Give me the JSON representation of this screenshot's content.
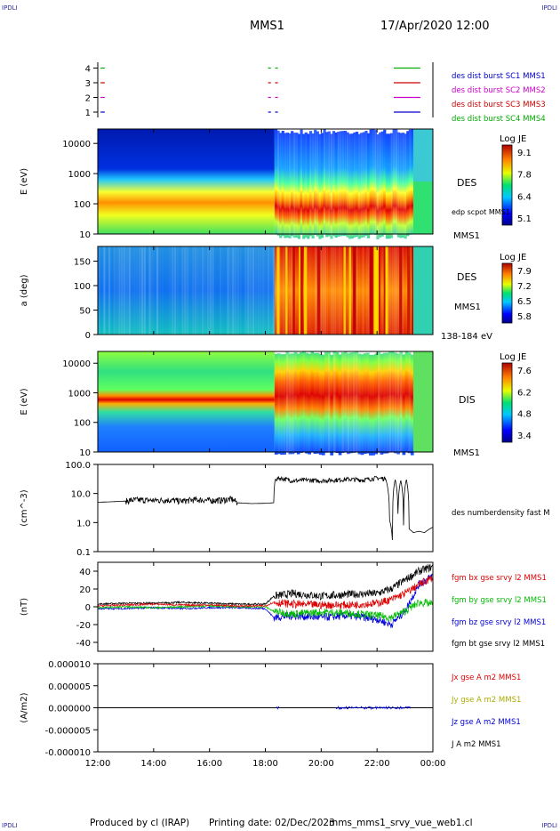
{
  "header": {
    "corner_tl": "IPDLI",
    "corner_tr": "IPDLI",
    "corner_bl": "IPDLI",
    "corner_br": "IPDLI",
    "spacecraft": "MMS1",
    "datetime": "17/Apr/2020 12:00"
  },
  "footer": {
    "produced_by": "Produced by cl (IRAP)",
    "printing_date": "Printing date: 02/Dec/2023",
    "filename": "mms_mms1_srvy_vue_web1.cl"
  },
  "time_axis": {
    "tick_labels": [
      "12:00",
      "14:00",
      "16:00",
      "18:00",
      "20:00",
      "22:00",
      "00:00"
    ],
    "start_hour": 12,
    "end_hour": 24
  },
  "chart_data": [
    {
      "type": "line",
      "panel": "burst-availability",
      "yticks": [
        "1",
        "2",
        "3",
        "4"
      ],
      "legend": [
        "des dist burst SC1 MMS1",
        "des dist burst SC2 MMS2",
        "des dist burst SC3 MMS3",
        "des dist burst SC4 MMS4"
      ],
      "colors": [
        "#0000cc",
        "#cc00cc",
        "#cc0000",
        "#00aa00"
      ],
      "series": [
        {
          "name": "des dist burst SC1 MMS1",
          "level": 1,
          "intervals": [
            [
              12.1,
              12.25
            ],
            [
              18.1,
              18.2
            ],
            [
              18.35,
              18.45
            ],
            [
              22.6,
              23.55
            ]
          ]
        },
        {
          "name": "des dist burst SC2 MMS2",
          "level": 2,
          "intervals": [
            [
              12.1,
              12.25
            ],
            [
              18.1,
              18.2
            ],
            [
              18.35,
              18.45
            ],
            [
              22.6,
              23.55
            ]
          ]
        },
        {
          "name": "des dist burst SC3 MMS3",
          "level": 3,
          "intervals": [
            [
              12.1,
              12.25
            ],
            [
              18.1,
              18.2
            ],
            [
              18.35,
              18.45
            ],
            [
              22.6,
              23.55
            ]
          ]
        },
        {
          "name": "des dist burst SC4 MMS4",
          "level": 4,
          "intervals": [
            [
              12.1,
              12.25
            ],
            [
              18.1,
              18.2
            ],
            [
              18.35,
              18.45
            ],
            [
              22.6,
              23.55
            ]
          ]
        }
      ]
    },
    {
      "type": "heatmap",
      "panel": "des-energy-spectrogram",
      "ylabel": "E (eV)",
      "yscale": "log",
      "ylim": [
        10,
        30000
      ],
      "yticks": [
        "10",
        "100",
        "1000",
        "10000"
      ],
      "right_labels": [
        "DES",
        "edp scpot MMS1",
        "MMS1"
      ],
      "colorbar": {
        "title": "Log JE",
        "ticks": [
          "9.1",
          "7.8",
          "6.4",
          "5.1"
        ],
        "range": [
          5.1,
          9.1
        ]
      }
    },
    {
      "type": "heatmap",
      "panel": "des-pitch-angle",
      "ylabel": "a (deg)",
      "ylim": [
        0,
        180
      ],
      "yticks": [
        "0",
        "50",
        "100",
        "150"
      ],
      "right_labels": [
        "DES",
        "MMS1",
        "138-184 eV"
      ],
      "colorbar": {
        "title": "Log JE",
        "ticks": [
          "7.9",
          "7.2",
          "6.5",
          "5.8"
        ],
        "range": [
          5.8,
          7.9
        ]
      }
    },
    {
      "type": "heatmap",
      "panel": "dis-energy-spectrogram",
      "ylabel": "E (eV)",
      "yscale": "log",
      "ylim": [
        10,
        25000
      ],
      "yticks": [
        "10",
        "100",
        "1000",
        "10000"
      ],
      "right_labels": [
        "DIS",
        "MMS1"
      ],
      "colorbar": {
        "title": "Log JE",
        "ticks": [
          "7.6",
          "6.2",
          "4.8",
          "3.4"
        ],
        "range": [
          3.4,
          7.6
        ]
      }
    },
    {
      "type": "line",
      "panel": "density",
      "ylabel": "(cm^-3)",
      "yscale": "log",
      "ylim": [
        0.1,
        100
      ],
      "yticks": [
        "0.1",
        "1.0",
        "10.0",
        "100.0"
      ],
      "series": [
        {
          "name": "des numberdensity fast M",
          "color": "#000000",
          "x": [
            12.0,
            12.5,
            13.0,
            13.2,
            13.6,
            14.0,
            14.5,
            15.0,
            15.5,
            16.0,
            16.5,
            16.8,
            17.0,
            17.5,
            18.0,
            18.3,
            18.35,
            18.5,
            19.0,
            19.5,
            20.0,
            20.5,
            21.0,
            21.5,
            22.0,
            22.3,
            22.45,
            22.55,
            22.65,
            22.75,
            22.85,
            22.95,
            23.05,
            23.15,
            23.3,
            23.5,
            23.7,
            24.0
          ],
          "y": [
            5.0,
            5.2,
            5.5,
            6.0,
            6.0,
            5.8,
            6.0,
            5.5,
            6.2,
            5.8,
            6.0,
            6.5,
            4.8,
            4.5,
            4.6,
            4.8,
            30,
            35,
            28,
            30,
            28,
            30,
            32,
            30,
            35,
            33,
            1.2,
            0.25,
            30,
            2.0,
            28,
            0.8,
            30,
            0.6,
            0.45,
            0.5,
            0.45,
            0.7
          ]
        }
      ]
    },
    {
      "type": "line",
      "panel": "magnetic-field",
      "ylabel": "(nT)",
      "ylim": [
        -50,
        50
      ],
      "yticks": [
        "-40",
        "-20",
        "0",
        "20",
        "40"
      ],
      "series": [
        {
          "name": "fgm bx gse srvy l2 MMS1",
          "color": "#dd0000",
          "x": [
            12,
            13,
            14,
            15,
            16,
            17,
            18,
            18.3,
            19,
            20,
            21,
            22,
            22.5,
            23,
            23.5,
            24
          ],
          "y": [
            1,
            2,
            3,
            2,
            2,
            1,
            1,
            5,
            3,
            2,
            2,
            4,
            8,
            15,
            25,
            33
          ]
        },
        {
          "name": "fgm by gse srvy l2 MMS1",
          "color": "#00bb00",
          "x": [
            12,
            13,
            14,
            15,
            16,
            17,
            18,
            18.3,
            19,
            20,
            21,
            22,
            22.5,
            23,
            23.5,
            24
          ],
          "y": [
            -1,
            0,
            -1,
            0,
            1,
            0,
            0,
            -5,
            -8,
            -6,
            -7,
            -10,
            -12,
            -5,
            5,
            3
          ]
        },
        {
          "name": "fgm bz gse srvy l2 MMS1",
          "color": "#0000dd",
          "x": [
            12,
            13,
            14,
            15,
            16,
            17,
            18,
            18.3,
            19,
            20,
            21,
            22,
            22.5,
            23,
            23.5,
            24
          ],
          "y": [
            -2,
            -2,
            -1,
            -2,
            -1,
            -1,
            -2,
            -12,
            -10,
            -12,
            -10,
            -14,
            -20,
            -5,
            25,
            35
          ]
        },
        {
          "name": "fgm bt gse srvy l2 MMS1",
          "color": "#000000",
          "x": [
            12,
            13,
            14,
            15,
            16,
            17,
            18,
            18.3,
            19,
            20,
            21,
            22,
            22.5,
            23,
            23.5,
            24
          ],
          "y": [
            3,
            4,
            4,
            5,
            4,
            3,
            3,
            12,
            15,
            12,
            14,
            15,
            20,
            30,
            40,
            45
          ]
        }
      ]
    },
    {
      "type": "line",
      "panel": "current-density",
      "ylabel": "(A/m2)",
      "ylim": [
        -1e-05,
        1e-05
      ],
      "yticks": [
        "-0.000010",
        "-0.000005",
        "0.000000",
        "0.000005",
        "0.000010"
      ],
      "series": [
        {
          "name": "Jx gse A m2 MMS1",
          "color": "#dd0000",
          "x": [
            12,
            24
          ],
          "y": [
            0,
            0
          ]
        },
        {
          "name": "Jy gse A m2 MMS1",
          "color": "#aaaa00",
          "x": [
            12,
            24
          ],
          "y": [
            0,
            0
          ]
        },
        {
          "name": "Jz gse A m2 MMS1",
          "color": "#0000dd",
          "x": [
            12,
            24
          ],
          "y": [
            0,
            0
          ]
        },
        {
          "name": "J A m2 MMS1",
          "color": "#000000",
          "x": [
            12,
            24
          ],
          "y": [
            0,
            0
          ]
        }
      ]
    }
  ]
}
